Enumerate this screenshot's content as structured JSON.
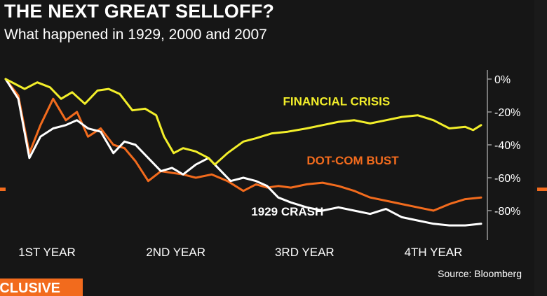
{
  "title": "THE NEXT GREAT SELLOFF?",
  "subtitle": "What happened in 1929, 2000 and 2007",
  "source": "Source: Bloomberg",
  "badge": "XCLUSIVE",
  "colors": {
    "financial_crisis": "#f2ee2a",
    "dot_com_bust": "#f26b1d",
    "crash_1929": "#ffffff",
    "background": "#161616",
    "accent": "#f26b1d"
  },
  "chart_data": {
    "type": "line",
    "title": "THE NEXT GREAT SELLOFF?",
    "subtitle": "What happened in 1929, 2000 and 2007",
    "xlabel": "",
    "ylabel": "",
    "x_tick_labels": [
      "1ST YEAR",
      "2ND YEAR",
      "3RD YEAR",
      "4TH YEAR"
    ],
    "x_tick_positions": [
      0.25,
      1.25,
      2.25,
      3.25
    ],
    "xlim": [
      0,
      3.0
    ],
    "y_tick_labels": [
      "0%",
      "-20%",
      "-40%",
      "-60%",
      "-80%"
    ],
    "y_tick_values": [
      0,
      -20,
      -40,
      -60,
      -80
    ],
    "ylim": [
      -95,
      5
    ],
    "grid": false,
    "legend": "inline labels",
    "series": [
      {
        "name": "FINANCIAL CRISIS",
        "key": "financial_crisis",
        "x": [
          0,
          0.06,
          0.12,
          0.2,
          0.28,
          0.35,
          0.42,
          0.5,
          0.58,
          0.65,
          0.72,
          0.8,
          0.88,
          0.95,
          1.0,
          1.06,
          1.12,
          1.2,
          1.28,
          1.32,
          1.4,
          1.5,
          1.58,
          1.68,
          1.78,
          1.9,
          2.0,
          2.1,
          2.2,
          2.3,
          2.4,
          2.5,
          2.6,
          2.7,
          2.8,
          2.9,
          2.95,
          3.0
        ],
        "values": [
          0,
          -3,
          -6,
          -2,
          -5,
          -12,
          -8,
          -15,
          -7,
          -6,
          -9,
          -19,
          -18,
          -22,
          -35,
          -45,
          -42,
          -44,
          -48,
          -52,
          -45,
          -38,
          -36,
          -33,
          -32,
          -30,
          -28,
          -26,
          -25,
          -27,
          -25,
          -23,
          -22,
          -25,
          -30,
          -29,
          -31,
          -28
        ]
      },
      {
        "name": "DOT-COM BUST",
        "key": "dot_com_bust",
        "x": [
          0,
          0.08,
          0.15,
          0.22,
          0.3,
          0.38,
          0.45,
          0.52,
          0.6,
          0.68,
          0.75,
          0.82,
          0.9,
          0.98,
          1.05,
          1.12,
          1.2,
          1.3,
          1.4,
          1.5,
          1.58,
          1.65,
          1.72,
          1.8,
          1.9,
          2.0,
          2.1,
          2.2,
          2.3,
          2.4,
          2.5,
          2.6,
          2.7,
          2.8,
          2.9,
          3.0
        ],
        "values": [
          0,
          -10,
          -45,
          -28,
          -12,
          -25,
          -20,
          -35,
          -30,
          -40,
          -42,
          -50,
          -62,
          -56,
          -57,
          -58,
          -60,
          -58,
          -62,
          -68,
          -64,
          -66,
          -65,
          -66,
          -64,
          -63,
          -65,
          -68,
          -72,
          -74,
          -76,
          -78,
          -80,
          -76,
          -73,
          -72
        ]
      },
      {
        "name": "1929 CRASH",
        "key": "crash_1929",
        "x": [
          0,
          0.08,
          0.15,
          0.22,
          0.3,
          0.38,
          0.45,
          0.52,
          0.6,
          0.68,
          0.75,
          0.82,
          0.9,
          0.98,
          1.05,
          1.12,
          1.2,
          1.28,
          1.35,
          1.42,
          1.5,
          1.58,
          1.65,
          1.72,
          1.8,
          1.9,
          2.0,
          2.1,
          2.2,
          2.3,
          2.4,
          2.5,
          2.6,
          2.7,
          2.8,
          2.9,
          3.0
        ],
        "values": [
          0,
          -12,
          -48,
          -35,
          -30,
          -28,
          -25,
          -30,
          -32,
          -45,
          -38,
          -40,
          -48,
          -56,
          -54,
          -58,
          -52,
          -48,
          -55,
          -62,
          -60,
          -62,
          -65,
          -72,
          -75,
          -78,
          -80,
          -78,
          -80,
          -82,
          -79,
          -84,
          -86,
          -88,
          -89,
          -89,
          -88
        ]
      }
    ],
    "annotations": [
      {
        "text": "FINANCIAL CRISIS",
        "series": "financial_crisis",
        "x": 1.75,
        "y": -16
      },
      {
        "text": "DOT-COM BUST",
        "series": "dot_com_bust",
        "x": 1.9,
        "y": -52
      },
      {
        "text": "1929 CRASH",
        "series": "crash_1929",
        "x": 1.55,
        "y": -83
      }
    ]
  }
}
